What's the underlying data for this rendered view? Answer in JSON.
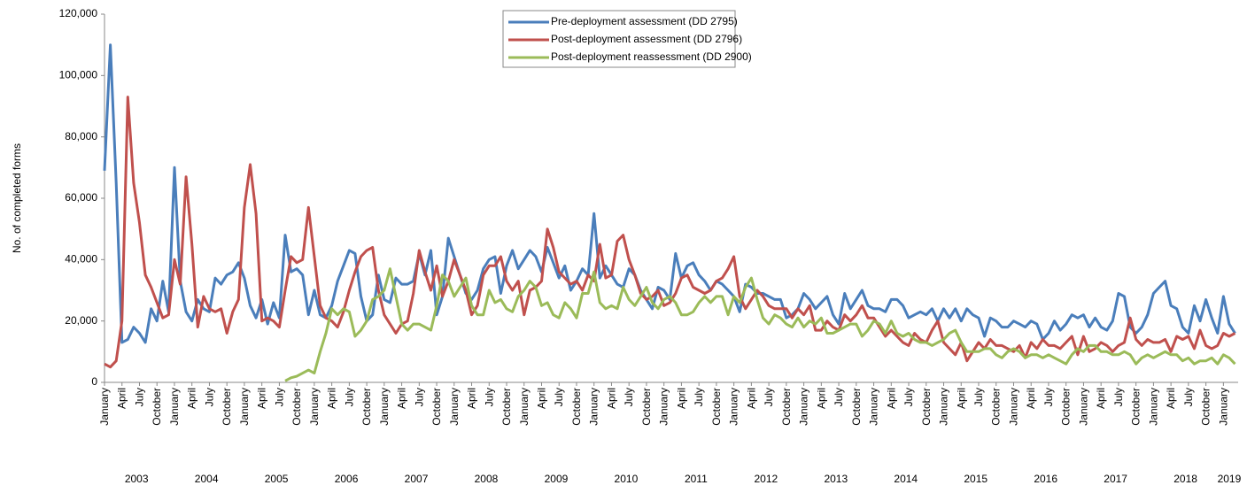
{
  "chart_data": {
    "type": "line",
    "y_label": "No. of completed forms",
    "categories": [
      "January",
      null,
      null,
      "April",
      null,
      null,
      "July",
      null,
      null,
      "October",
      null,
      null,
      "January",
      null,
      null,
      "April",
      null,
      null,
      "July",
      null,
      null,
      "October",
      null,
      null,
      "January",
      null,
      null,
      "April",
      null,
      null,
      "July",
      null,
      null,
      "October",
      null,
      null,
      "January",
      null,
      null,
      "April",
      null,
      null,
      "July",
      null,
      null,
      "October",
      null,
      null,
      "January",
      null,
      null,
      "April",
      null,
      null,
      "July",
      null,
      null,
      "October",
      null,
      null,
      "January",
      null,
      null,
      "April",
      null,
      null,
      "July",
      null,
      null,
      "October",
      null,
      null,
      "January",
      null,
      null,
      "April",
      null,
      null,
      "July",
      null,
      null,
      "October",
      null,
      null,
      "January",
      null,
      null,
      "April",
      null,
      null,
      "July",
      null,
      null,
      "October",
      null,
      null,
      "January",
      null,
      null,
      "April",
      null,
      null,
      "July",
      null,
      null,
      "October",
      null,
      null,
      "January",
      null,
      null,
      "April",
      null,
      null,
      "July",
      null,
      null,
      "October",
      null,
      null,
      "January",
      null,
      null,
      "April",
      null,
      null,
      "July",
      null,
      null,
      "October",
      null,
      null,
      "January",
      null,
      null,
      "April",
      null,
      null,
      "July",
      null,
      null,
      "October",
      null,
      null,
      "January",
      null,
      null,
      "April",
      null,
      null,
      "July",
      null,
      null,
      "October",
      null,
      null,
      "January",
      null,
      null,
      "April",
      null,
      null,
      "July",
      null,
      null,
      "October",
      null,
      null,
      "January",
      null,
      null,
      "April",
      null,
      null,
      "July",
      null,
      null,
      "October",
      null,
      null,
      "January",
      null,
      null,
      "April",
      null,
      null,
      "July",
      null,
      null,
      "October",
      null,
      null,
      "January",
      null,
      null
    ],
    "years": [
      "2003",
      "2004",
      "2005",
      "2006",
      "2007",
      "2008",
      "2009",
      "2010",
      "2011",
      "2012",
      "2013",
      "2014",
      "2015",
      "2016",
      "2017",
      "2018",
      "2019"
    ],
    "ylim": [
      0,
      120000
    ],
    "yticks": [
      0,
      {
        "value": 20000,
        "label": "20,000"
      },
      {
        "value": 40000,
        "label": "40,000"
      },
      {
        "value": 60000,
        "label": "60,000"
      },
      {
        "value": 80000,
        "label": "80,000"
      },
      {
        "value": 100000,
        "label": "100,000"
      },
      {
        "value": 120000,
        "label": "120,000"
      }
    ],
    "legend": "top-center",
    "series": [
      {
        "name": "Pre-deployment assessment (DD 2795)",
        "color": "#4a7ebb",
        "values": [
          69000,
          110000,
          65000,
          13000,
          14000,
          18000,
          16000,
          13000,
          24000,
          20000,
          33000,
          23000,
          70000,
          33000,
          23000,
          20000,
          27000,
          24000,
          23000,
          34000,
          32000,
          35000,
          36000,
          39000,
          34000,
          25000,
          21000,
          27000,
          19000,
          26000,
          21000,
          48000,
          36000,
          37000,
          35000,
          22000,
          30000,
          22000,
          21000,
          25000,
          33000,
          38000,
          43000,
          42000,
          28000,
          20000,
          22000,
          35000,
          27000,
          26000,
          34000,
          32000,
          32000,
          33000,
          42000,
          35000,
          43000,
          22000,
          28000,
          47000,
          41000,
          35000,
          29000,
          27000,
          30000,
          37000,
          40000,
          41000,
          29000,
          38000,
          43000,
          37000,
          40000,
          43000,
          41000,
          36000,
          44000,
          39000,
          34000,
          38000,
          30000,
          33000,
          37000,
          35000,
          55000,
          34000,
          38000,
          35000,
          32000,
          31000,
          37000,
          35000,
          30000,
          27000,
          24000,
          31000,
          30000,
          27000,
          42000,
          34000,
          38000,
          39000,
          35000,
          33000,
          30000,
          33000,
          32000,
          30000,
          28000,
          23000,
          32000,
          31000,
          29000,
          29000,
          28000,
          27000,
          27000,
          21000,
          22000,
          24000,
          29000,
          27000,
          24000,
          26000,
          28000,
          22000,
          19000,
          29000,
          24000,
          27000,
          30000,
          25000,
          24000,
          24000,
          23000,
          27000,
          27000,
          25000,
          21000,
          22000,
          23000,
          22000,
          24000,
          20000,
          24000,
          21000,
          24000,
          20000,
          24000,
          22000,
          21000,
          15000,
          21000,
          20000,
          18000,
          18000,
          20000,
          19000,
          18000,
          20000,
          19000,
          14000,
          16000,
          20000,
          17000,
          19000,
          22000,
          21000,
          22000,
          18000,
          21000,
          18000,
          17000,
          20000,
          29000,
          28000,
          18000,
          16000,
          18000,
          22000,
          29000,
          31000,
          33000,
          25000,
          24000,
          18000,
          16000,
          25000,
          20000,
          27000,
          21000,
          16000,
          28000,
          19000,
          16000
        ]
      },
      {
        "name": "Post-deployment assessment (DD 2796)",
        "color": "#c0504d",
        "values": [
          6000,
          5000,
          7000,
          20000,
          93000,
          65000,
          52000,
          35000,
          31000,
          26000,
          21000,
          22000,
          40000,
          32000,
          67000,
          45000,
          18000,
          28000,
          24000,
          23000,
          24000,
          16000,
          23000,
          27000,
          57000,
          71000,
          55000,
          20000,
          21000,
          20000,
          18000,
          30000,
          41000,
          39000,
          40000,
          57000,
          41000,
          25000,
          21000,
          20000,
          18000,
          23000,
          30000,
          36000,
          41000,
          43000,
          44000,
          30000,
          22000,
          19000,
          16000,
          19000,
          20000,
          29000,
          43000,
          36000,
          30000,
          38000,
          28000,
          33000,
          40000,
          35000,
          30000,
          22000,
          25000,
          35000,
          38000,
          38000,
          41000,
          33000,
          30000,
          33000,
          22000,
          30000,
          31000,
          33000,
          50000,
          44000,
          36000,
          34000,
          32000,
          33000,
          30000,
          35000,
          33000,
          45000,
          34000,
          35000,
          46000,
          48000,
          40000,
          35000,
          29000,
          27000,
          28000,
          30000,
          25000,
          26000,
          29000,
          34000,
          35000,
          31000,
          30000,
          29000,
          30000,
          33000,
          34000,
          37000,
          41000,
          28000,
          24000,
          27000,
          30000,
          28000,
          25000,
          24000,
          24000,
          24000,
          21000,
          24000,
          22000,
          25000,
          17000,
          17000,
          20000,
          18000,
          17000,
          22000,
          20000,
          22000,
          25000,
          21000,
          21000,
          18000,
          15000,
          17000,
          15000,
          13000,
          12000,
          16000,
          14000,
          13000,
          17000,
          20000,
          13000,
          11000,
          9000,
          13000,
          7000,
          10000,
          13000,
          11000,
          14000,
          12000,
          12000,
          11000,
          10000,
          12000,
          8000,
          13000,
          11000,
          14000,
          12000,
          12000,
          11000,
          13000,
          15000,
          9000,
          15000,
          10000,
          11000,
          13000,
          12000,
          10000,
          12000,
          13000,
          21000,
          14000,
          12000,
          14000,
          13000,
          13000,
          14000,
          10000,
          15000,
          14000,
          15000,
          11000,
          17000,
          12000,
          11000,
          12000,
          16000,
          15000,
          16000
        ]
      },
      {
        "name": "Post-deployment reassessment (DD 2900)",
        "color": "#9bbb59",
        "values": [
          null,
          null,
          null,
          null,
          null,
          null,
          null,
          null,
          null,
          null,
          null,
          null,
          null,
          null,
          null,
          null,
          null,
          null,
          null,
          null,
          null,
          null,
          null,
          null,
          null,
          null,
          null,
          null,
          null,
          null,
          null,
          500,
          1500,
          2000,
          3000,
          4000,
          3000,
          10000,
          16000,
          24000,
          22000,
          24000,
          23000,
          15000,
          17000,
          20000,
          27000,
          28000,
          30000,
          37000,
          28000,
          19000,
          17000,
          19000,
          19000,
          18000,
          17000,
          25000,
          35000,
          33000,
          28000,
          31000,
          34000,
          25000,
          22000,
          22000,
          30000,
          26000,
          27000,
          24000,
          23000,
          28000,
          30000,
          33000,
          31000,
          25000,
          26000,
          22000,
          21000,
          26000,
          24000,
          21000,
          29000,
          29000,
          36000,
          26000,
          24000,
          25000,
          24000,
          31000,
          27000,
          25000,
          28000,
          31000,
          26000,
          24000,
          27000,
          28000,
          26000,
          22000,
          22000,
          23000,
          26000,
          28000,
          26000,
          28000,
          28000,
          22000,
          28000,
          26000,
          31000,
          34000,
          27000,
          21000,
          19000,
          22000,
          21000,
          19000,
          18000,
          21000,
          18000,
          20000,
          19000,
          21000,
          16000,
          16000,
          17000,
          18000,
          19000,
          19000,
          15000,
          17000,
          20000,
          19000,
          16000,
          20000,
          16000,
          15000,
          16000,
          14000,
          13000,
          13000,
          12000,
          13000,
          14000,
          16000,
          17000,
          13000,
          10000,
          10000,
          10000,
          11000,
          11000,
          9000,
          8000,
          10000,
          11000,
          10000,
          8000,
          9000,
          9000,
          8000,
          9000,
          8000,
          7000,
          6000,
          9000,
          11000,
          10000,
          12000,
          12000,
          10000,
          10000,
          9000,
          9000,
          10000,
          9000,
          6000,
          8000,
          9000,
          8000,
          9000,
          10000,
          9000,
          9000,
          7000,
          8000,
          6000,
          7000,
          7000,
          8000,
          6000,
          9000,
          8000,
          6000
        ]
      }
    ]
  }
}
